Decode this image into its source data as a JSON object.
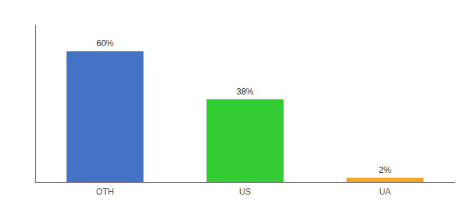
{
  "chart_data": {
    "type": "bar",
    "categories": [
      "OTH",
      "US",
      "UA"
    ],
    "values": [
      60,
      38,
      2
    ],
    "value_labels": [
      "60%",
      "38%",
      "2%"
    ],
    "colors": [
      "#4472c4",
      "#33cc33",
      "#f5a623"
    ],
    "ylim": [
      0,
      72
    ],
    "grid": false,
    "data_labels": true,
    "tick_labels": "x"
  }
}
